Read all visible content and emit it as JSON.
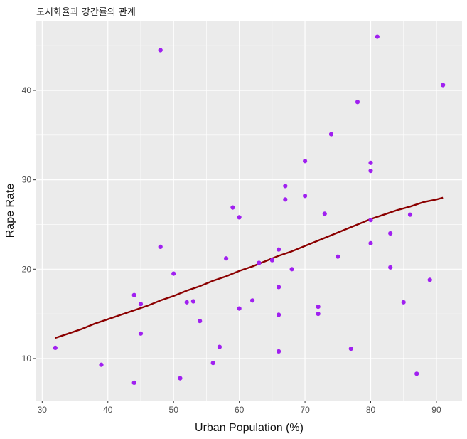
{
  "chart_data": {
    "type": "scatter",
    "title": "도시화율과 강간률의 관계",
    "xlabel": "Urban Population (%)",
    "ylabel": "Rape Rate",
    "xlim": [
      29.1,
      93.9
    ],
    "ylim": [
      5.3,
      47.8
    ],
    "x_ticks": [
      30,
      40,
      50,
      60,
      70,
      80,
      90
    ],
    "y_ticks": [
      10,
      20,
      30,
      40
    ],
    "grid": true,
    "colors": {
      "panel_background": "#ebebeb",
      "grid": "#ffffff",
      "points": "#a020f0",
      "trend_line": "#8b0000"
    },
    "points": [
      {
        "x": 58,
        "y": 21.2
      },
      {
        "x": 48,
        "y": 44.5
      },
      {
        "x": 80,
        "y": 31.0
      },
      {
        "x": 50,
        "y": 19.5
      },
      {
        "x": 91,
        "y": 40.6
      },
      {
        "x": 78,
        "y": 38.7
      },
      {
        "x": 77,
        "y": 11.1
      },
      {
        "x": 72,
        "y": 15.8
      },
      {
        "x": 80,
        "y": 31.9
      },
      {
        "x": 60,
        "y": 25.8
      },
      {
        "x": 83,
        "y": 20.2
      },
      {
        "x": 54,
        "y": 14.2
      },
      {
        "x": 83,
        "y": 24.0
      },
      {
        "x": 65,
        "y": 21.0
      },
      {
        "x": 57,
        "y": 11.3
      },
      {
        "x": 66,
        "y": 18.0
      },
      {
        "x": 52,
        "y": 16.3
      },
      {
        "x": 66,
        "y": 22.2
      },
      {
        "x": 51,
        "y": 7.8
      },
      {
        "x": 67,
        "y": 27.8
      },
      {
        "x": 85,
        "y": 16.3
      },
      {
        "x": 74,
        "y": 35.1
      },
      {
        "x": 66,
        "y": 14.9
      },
      {
        "x": 44,
        "y": 17.1
      },
      {
        "x": 70,
        "y": 28.2
      },
      {
        "x": 53,
        "y": 16.4
      },
      {
        "x": 62,
        "y": 16.5
      },
      {
        "x": 81,
        "y": 46.0
      },
      {
        "x": 56,
        "y": 9.5
      },
      {
        "x": 89,
        "y": 18.8
      },
      {
        "x": 70,
        "y": 32.1
      },
      {
        "x": 86,
        "y": 26.1
      },
      {
        "x": 45,
        "y": 16.1
      },
      {
        "x": 44,
        "y": 7.3
      },
      {
        "x": 75,
        "y": 21.4
      },
      {
        "x": 68,
        "y": 20.0
      },
      {
        "x": 72,
        "y": 15.0
      },
      {
        "x": 87,
        "y": 8.3
      },
      {
        "x": 48,
        "y": 22.5
      },
      {
        "x": 45,
        "y": 12.8
      },
      {
        "x": 80,
        "y": 25.5
      },
      {
        "x": 73,
        "y": 26.2
      },
      {
        "x": 39,
        "y": 9.3
      },
      {
        "x": 63,
        "y": 20.7
      },
      {
        "x": 59,
        "y": 26.9
      },
      {
        "x": 67,
        "y": 29.3
      },
      {
        "x": 60,
        "y": 15.6
      },
      {
        "x": 80,
        "y": 22.9
      },
      {
        "x": 32,
        "y": 11.2
      },
      {
        "x": 66,
        "y": 10.8
      }
    ],
    "trend_line": [
      {
        "x": 32,
        "y": 12.3
      },
      {
        "x": 34,
        "y": 12.8
      },
      {
        "x": 36,
        "y": 13.3
      },
      {
        "x": 38,
        "y": 13.9
      },
      {
        "x": 40,
        "y": 14.4
      },
      {
        "x": 42,
        "y": 14.9
      },
      {
        "x": 44,
        "y": 15.4
      },
      {
        "x": 46,
        "y": 15.9
      },
      {
        "x": 48,
        "y": 16.5
      },
      {
        "x": 50,
        "y": 17.0
      },
      {
        "x": 52,
        "y": 17.6
      },
      {
        "x": 54,
        "y": 18.1
      },
      {
        "x": 56,
        "y": 18.7
      },
      {
        "x": 58,
        "y": 19.2
      },
      {
        "x": 60,
        "y": 19.8
      },
      {
        "x": 62,
        "y": 20.3
      },
      {
        "x": 64,
        "y": 20.9
      },
      {
        "x": 66,
        "y": 21.5
      },
      {
        "x": 68,
        "y": 22.0
      },
      {
        "x": 70,
        "y": 22.6
      },
      {
        "x": 72,
        "y": 23.2
      },
      {
        "x": 74,
        "y": 23.8
      },
      {
        "x": 76,
        "y": 24.4
      },
      {
        "x": 78,
        "y": 25.0
      },
      {
        "x": 80,
        "y": 25.6
      },
      {
        "x": 82,
        "y": 26.1
      },
      {
        "x": 84,
        "y": 26.6
      },
      {
        "x": 86,
        "y": 27.0
      },
      {
        "x": 88,
        "y": 27.5
      },
      {
        "x": 90,
        "y": 27.8
      },
      {
        "x": 91,
        "y": 28.0
      }
    ]
  }
}
